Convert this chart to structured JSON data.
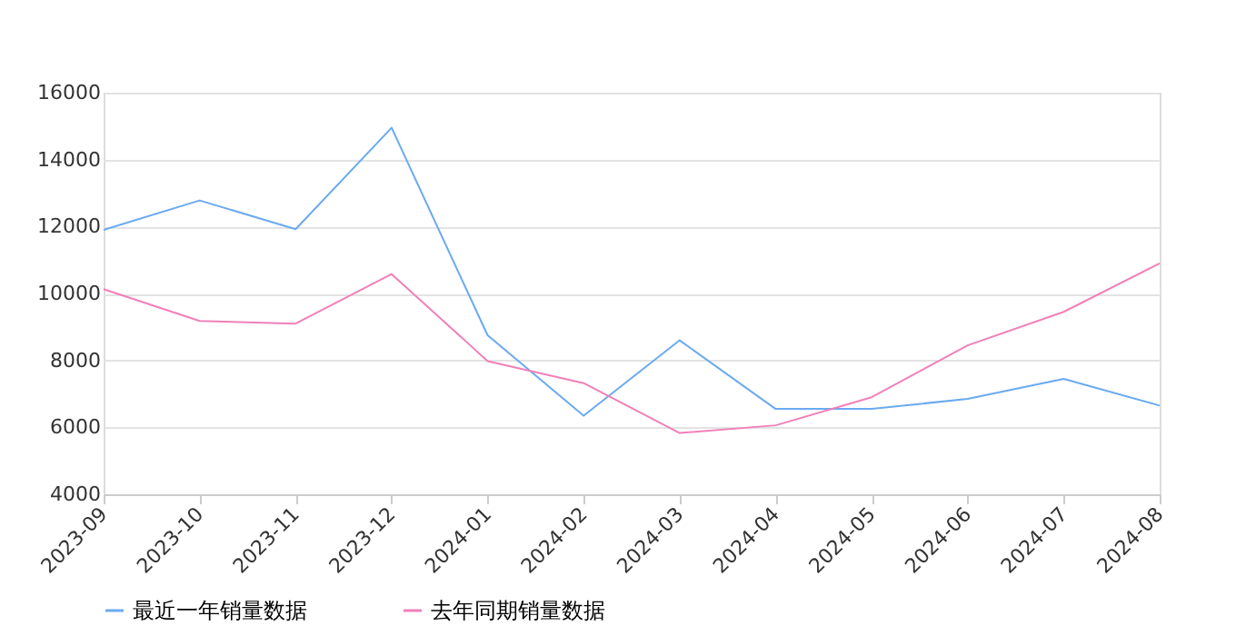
{
  "chart_data": {
    "type": "line",
    "categories": [
      "2023-09",
      "2023-10",
      "2023-11",
      "2023-12",
      "2024-01",
      "2024-02",
      "2024-03",
      "2024-04",
      "2024-05",
      "2024-06",
      "2024-07",
      "2024-08"
    ],
    "series": [
      {
        "name": "最近一年销量数据",
        "color": "#6aaaf0",
        "values": [
          11900,
          12780,
          11920,
          14950,
          8750,
          6350,
          8600,
          6550,
          6550,
          6850,
          7450,
          6650
        ]
      },
      {
        "name": "去年同期销量数据",
        "color": "#f080b8",
        "values": [
          10130,
          9180,
          9100,
          10580,
          7980,
          7320,
          5830,
          6060,
          6900,
          8450,
          9450,
          10900
        ]
      }
    ],
    "ylim": [
      4000,
      16000
    ],
    "yticks": [
      4000,
      6000,
      8000,
      10000,
      12000,
      14000,
      16000
    ],
    "grid": "y",
    "legend": "bottom",
    "marker": "none",
    "line_style": "solid"
  }
}
